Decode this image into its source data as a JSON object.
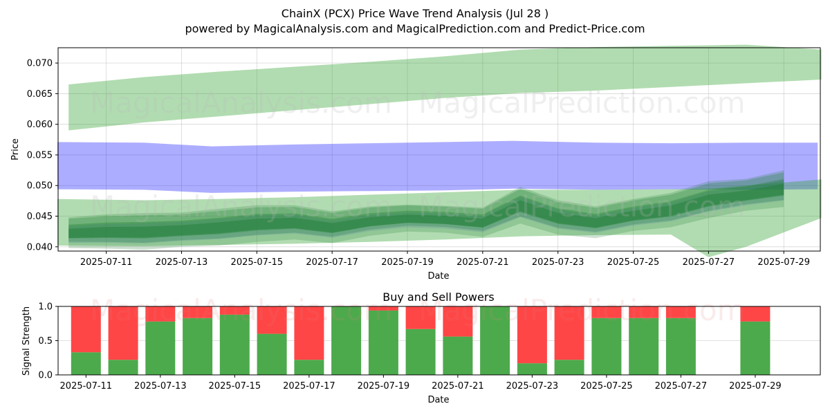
{
  "title": "ChainX (PCX) Price Wave Trend Analysis (Jul 28 )",
  "subtitle": "powered by MagicalAnalysis.com and MagicalPrediction.com and Predict-Price.com",
  "watermarks": [
    "MagicalAnalysis.com",
    "MagicalPrediction.com"
  ],
  "chart_data": [
    {
      "type": "area",
      "xlabel": "Date",
      "ylabel": "Price",
      "ylim": [
        0.0393,
        0.0725
      ],
      "xlim": [
        "2025-07-09",
        "2025-07-30"
      ],
      "x_ticks": [
        "2025-07-11",
        "2025-07-13",
        "2025-07-15",
        "2025-07-17",
        "2025-07-19",
        "2025-07-21",
        "2025-07-23",
        "2025-07-25",
        "2025-07-27",
        "2025-07-29"
      ],
      "y_ticks": [
        0.04,
        0.045,
        0.05,
        0.055,
        0.06,
        0.065,
        0.07
      ],
      "grid": true,
      "colors": {
        "upper_band": "#2ca02c",
        "middle_band": "#0000ff",
        "lower_band": "#2ca02c",
        "price_wave": "#1e7d32",
        "wave_blue": "#4a6fa5"
      },
      "bands": [
        {
          "name": "upper",
          "x": [
            "2025-07-10",
            "2025-07-12",
            "2025-07-14",
            "2025-07-16",
            "2025-07-18",
            "2025-07-20",
            "2025-07-22",
            "2025-07-24",
            "2025-07-26",
            "2025-07-28",
            "2025-07-30"
          ],
          "low": [
            0.059,
            0.0603,
            0.0613,
            0.0623,
            0.0633,
            0.0643,
            0.0651,
            0.0655,
            0.0661,
            0.0667,
            0.0673
          ],
          "high": [
            0.0665,
            0.0677,
            0.0686,
            0.0694,
            0.0702,
            0.0711,
            0.0722,
            0.0726,
            0.0728,
            0.073,
            0.0722
          ]
        },
        {
          "name": "middle",
          "x": [
            "2025-07-09.7",
            "2025-07-12",
            "2025-07-13.8",
            "2025-07-16",
            "2025-07-18",
            "2025-07-20",
            "2025-07-21.8",
            "2025-07-24",
            "2025-07-26",
            "2025-07-28",
            "2025-07-29.9"
          ],
          "low": [
            0.0494,
            0.0493,
            0.0488,
            0.049,
            0.0491,
            0.0492,
            0.0495,
            0.0493,
            0.0494,
            0.0493,
            0.0494
          ],
          "high": [
            0.0571,
            0.057,
            0.0564,
            0.0567,
            0.0569,
            0.0571,
            0.0573,
            0.057,
            0.0569,
            0.057,
            0.057
          ]
        },
        {
          "name": "lower",
          "x": [
            "2025-07-09.7",
            "2025-07-12",
            "2025-07-14",
            "2025-07-16",
            "2025-07-18",
            "2025-07-20",
            "2025-07-22",
            "2025-07-24",
            "2025-07-26",
            "2025-07-27",
            "2025-07-28",
            "2025-07-30"
          ],
          "low": [
            0.0402,
            0.0401,
            0.0403,
            0.0405,
            0.0408,
            0.0412,
            0.0417,
            0.0419,
            0.042,
            0.0383,
            0.04,
            0.0447
          ],
          "high": [
            0.0478,
            0.0476,
            0.0478,
            0.0481,
            0.0485,
            0.0489,
            0.0493,
            0.0493,
            0.0494,
            0.0495,
            0.05,
            0.051
          ]
        }
      ],
      "price_wave": {
        "x": [
          "2025-07-10",
          "2025-07-11",
          "2025-07-12",
          "2025-07-13",
          "2025-07-14",
          "2025-07-15",
          "2025-07-16",
          "2025-07-17",
          "2025-07-18",
          "2025-07-19",
          "2025-07-20",
          "2025-07-21",
          "2025-07-22",
          "2025-07-23",
          "2025-07-24",
          "2025-07-25",
          "2025-07-26",
          "2025-07-27",
          "2025-07-28",
          "2025-07-29"
        ],
        "y": [
          0.0423,
          0.0425,
          0.0425,
          0.0428,
          0.0432,
          0.0438,
          0.044,
          0.0432,
          0.0442,
          0.0447,
          0.0445,
          0.044,
          0.0468,
          0.0448,
          0.044,
          0.0452,
          0.046,
          0.0477,
          0.0485,
          0.0495
        ],
        "spread": [
          0.0025,
          0.0028,
          0.003,
          0.0028,
          0.003,
          0.003,
          0.0028,
          0.0026,
          0.0024,
          0.0022,
          0.0022,
          0.0024,
          0.003,
          0.0028,
          0.0026,
          0.0026,
          0.0028,
          0.003,
          0.0026,
          0.003
        ]
      }
    },
    {
      "type": "bar",
      "title": "Buy and Sell Powers",
      "xlabel": "Date",
      "ylabel": "Signal Strength",
      "ylim": [
        0,
        1.0
      ],
      "y_ticks": [
        0.0,
        0.5,
        1.0
      ],
      "x_ticks": [
        "2025-07-11",
        "2025-07-13",
        "2025-07-15",
        "2025-07-17",
        "2025-07-19",
        "2025-07-21",
        "2025-07-23",
        "2025-07-25",
        "2025-07-27",
        "2025-07-29"
      ],
      "colors": {
        "buy": "#4caa4c",
        "sell": "#ff4646"
      },
      "categories": [
        "2025-07-11",
        "2025-07-12",
        "2025-07-13",
        "2025-07-14",
        "2025-07-15",
        "2025-07-16",
        "2025-07-17",
        "2025-07-18",
        "2025-07-19",
        "2025-07-20",
        "2025-07-21",
        "2025-07-22",
        "2025-07-23",
        "2025-07-24",
        "2025-07-25",
        "2025-07-26",
        "2025-07-27",
        "2025-07-29"
      ],
      "series": [
        {
          "name": "buy",
          "values": [
            0.33,
            0.22,
            0.78,
            0.83,
            0.88,
            0.6,
            0.22,
            1.0,
            0.94,
            0.67,
            0.56,
            1.0,
            0.17,
            0.22,
            0.83,
            0.83,
            0.83,
            0.78
          ]
        },
        {
          "name": "sell",
          "values": [
            0.67,
            0.78,
            0.22,
            0.17,
            0.12,
            0.4,
            0.78,
            0.0,
            0.06,
            0.33,
            0.44,
            0.0,
            0.83,
            0.78,
            0.17,
            0.17,
            0.17,
            0.22
          ]
        }
      ]
    }
  ]
}
